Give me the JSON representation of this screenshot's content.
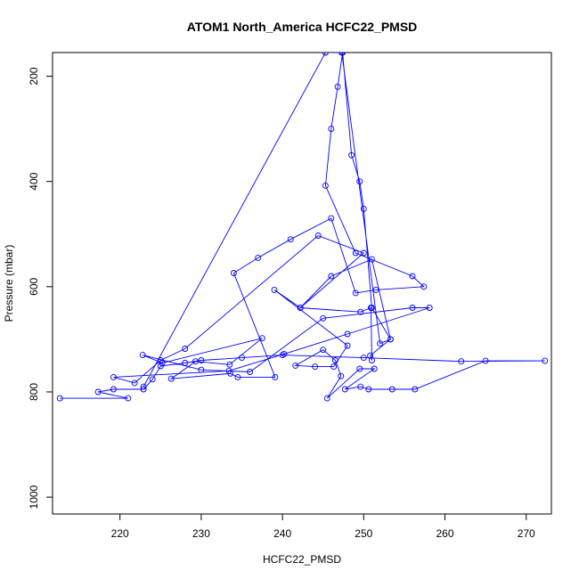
{
  "chart_data": {
    "type": "line",
    "title": "ATOM1 North_America HCFC22_PMSD",
    "xlabel": "HCFC22_PMSD",
    "ylabel": "Pressure (mbar)",
    "xlim": [
      211.7,
      273.1
    ],
    "ylim": [
      1032,
      155
    ],
    "y_axis_inverted": true,
    "x_ticks": [
      220,
      230,
      240,
      250,
      260,
      270
    ],
    "y_ticks": [
      200,
      400,
      600,
      800,
      1000
    ],
    "grid": false,
    "legend": "none",
    "series": [
      {
        "color": "#0000ff",
        "marker": "open-circle",
        "points": [
          [
            212.6,
            812
          ],
          [
            221.0,
            812
          ],
          [
            217.3,
            800
          ],
          [
            219.2,
            795
          ],
          [
            222.9,
            795
          ],
          [
            224.0,
            776
          ],
          [
            225.0,
            751
          ],
          [
            228.0,
            745
          ],
          [
            230.0,
            740
          ],
          [
            235.0,
            735
          ],
          [
            240.0,
            730
          ],
          [
            250.0,
            735
          ],
          [
            262.0,
            742
          ],
          [
            272.3,
            741
          ],
          [
            265.0,
            741
          ],
          [
            256.3,
            795
          ],
          [
            253.5,
            795
          ],
          [
            250.6,
            795
          ],
          [
            249.6,
            790
          ],
          [
            247.7,
            795
          ],
          [
            251.3,
            756
          ],
          [
            249.5,
            756
          ],
          [
            245.5,
            812
          ],
          [
            247.2,
            770
          ],
          [
            246.5,
            740
          ],
          [
            245.0,
            720
          ],
          [
            241.6,
            750
          ],
          [
            244.0,
            752
          ],
          [
            246.3,
            752
          ],
          [
            248.0,
            712
          ],
          [
            239.0,
            606
          ],
          [
            242.2,
            640
          ],
          [
            249.6,
            648
          ],
          [
            250.9,
            640
          ],
          [
            251.0,
            740
          ],
          [
            250.8,
            731
          ],
          [
            253.3,
            700
          ],
          [
            251.0,
            640
          ],
          [
            250.0,
            452
          ],
          [
            249.5,
            400
          ],
          [
            248.5,
            350
          ],
          [
            247.4,
            155
          ],
          [
            246.8,
            220
          ],
          [
            246.0,
            300
          ],
          [
            245.3,
            408
          ],
          [
            249.0,
            536
          ],
          [
            256.0,
            580
          ],
          [
            257.4,
            600
          ],
          [
            251.5,
            606
          ],
          [
            249.0,
            612
          ],
          [
            246.0,
            470
          ],
          [
            241.0,
            510
          ],
          [
            237.0,
            545
          ],
          [
            234.0,
            574
          ],
          [
            239.1,
            772
          ],
          [
            234.5,
            772
          ],
          [
            233.6,
            765
          ],
          [
            226.3,
            775
          ],
          [
            229.3,
            742
          ],
          [
            233.5,
            748
          ],
          [
            237.5,
            698
          ],
          [
            225.2,
            745
          ],
          [
            222.8,
            730
          ],
          [
            230.0,
            758
          ],
          [
            236.0,
            762
          ],
          [
            245.0,
            660
          ],
          [
            256.0,
            640
          ],
          [
            258.1,
            640
          ],
          [
            248.0,
            690
          ],
          [
            240.2,
            728
          ],
          [
            233.4,
            760
          ],
          [
            219.2,
            772
          ],
          [
            221.8,
            783
          ],
          [
            225.0,
            740
          ],
          [
            228.0,
            718
          ],
          [
            244.4,
            503
          ],
          [
            250.0,
            536
          ],
          [
            242.2,
            640
          ],
          [
            246.0,
            580
          ],
          [
            251.0,
            548
          ],
          [
            253.3,
            700
          ],
          [
            252.0,
            708
          ],
          [
            247.3,
            155
          ],
          [
            245.3,
            155
          ],
          [
            222.9,
            790
          ]
        ]
      }
    ]
  }
}
